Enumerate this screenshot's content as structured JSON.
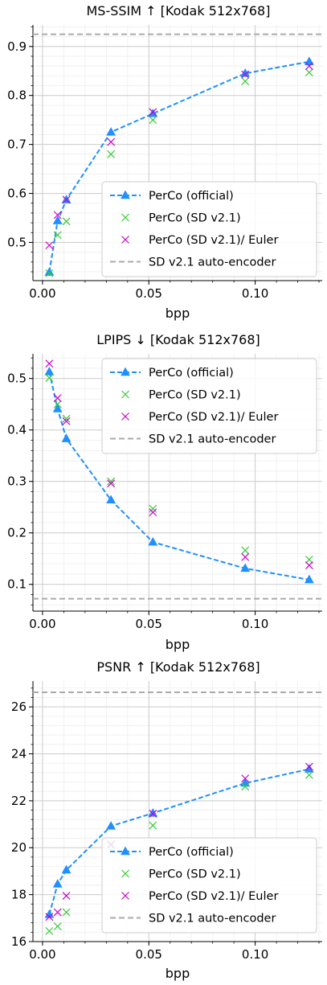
{
  "colors": {
    "official": "#1e90ff",
    "sd21": "#33cc33",
    "euler": "#cc00cc",
    "autoencoder": "#aaaaaa",
    "grid_major": "#cccccc",
    "grid_minor": "#eeeeee"
  },
  "legend_labels": [
    "PerCo (official)",
    "PerCo (SD v2.1)",
    "PerCo (SD v2.1)/ Euler",
    "SD v2.1 auto-encoder"
  ],
  "chart_data": [
    {
      "type": "line",
      "title": "MS-SSIM ↑  [Kodak 512x768]",
      "xlabel": "bpp",
      "ylabel": "",
      "xlim": [
        -0.0045,
        0.1315
      ],
      "ylim": [
        0.422,
        0.944
      ],
      "xticks": [
        0.0,
        0.05,
        0.1
      ],
      "xtick_labels": [
        "0.00",
        "0.05",
        "0.10"
      ],
      "yticks": [
        0.5,
        0.6,
        0.7,
        0.8,
        0.9
      ],
      "ytick_labels": [
        "0.5",
        "0.6",
        "0.7",
        "0.8",
        "0.9"
      ],
      "legend_position": "lower right",
      "grid": true,
      "series": [
        {
          "name": "PerCo (official)",
          "style": "line-triangle",
          "x": [
            0.0032,
            0.0071,
            0.0112,
            0.0322,
            0.0519,
            0.0953,
            0.1254
          ],
          "y": [
            0.439,
            0.544,
            0.587,
            0.725,
            0.763,
            0.845,
            0.869
          ]
        },
        {
          "name": "PerCo (SD v2.1)",
          "style": "x",
          "x": [
            0.0032,
            0.0071,
            0.0112,
            0.0322,
            0.0519,
            0.0953,
            0.1254
          ],
          "y": [
            0.437,
            0.515,
            0.543,
            0.68,
            0.75,
            0.829,
            0.847
          ]
        },
        {
          "name": "PerCo (SD v2.1)/ Euler",
          "style": "x",
          "x": [
            0.0032,
            0.0071,
            0.0112,
            0.0322,
            0.0519,
            0.0953,
            0.1254
          ],
          "y": [
            0.494,
            0.556,
            0.587,
            0.705,
            0.766,
            0.843,
            0.86
          ]
        },
        {
          "name": "SD v2.1 auto-encoder",
          "style": "hline",
          "y": 0.925
        }
      ]
    },
    {
      "type": "line",
      "title": "LPIPS ↓  [Kodak 512x768]",
      "xlabel": "bpp",
      "ylabel": "",
      "xlim": [
        -0.0045,
        0.1315
      ],
      "ylim": [
        0.048,
        0.548
      ],
      "xticks": [
        0.0,
        0.05,
        0.1
      ],
      "xtick_labels": [
        "0.00",
        "0.05",
        "0.10"
      ],
      "yticks": [
        0.1,
        0.2,
        0.3,
        0.4,
        0.5
      ],
      "ytick_labels": [
        "0.1",
        "0.2",
        "0.3",
        "0.4",
        "0.5"
      ],
      "legend_position": "upper right",
      "grid": true,
      "series": [
        {
          "name": "PerCo (official)",
          "style": "line-triangle",
          "x": [
            0.0032,
            0.0071,
            0.0112,
            0.0322,
            0.0519,
            0.0953,
            0.1254
          ],
          "y": [
            0.513,
            0.441,
            0.383,
            0.264,
            0.182,
            0.131,
            0.109
          ]
        },
        {
          "name": "PerCo (SD v2.1)",
          "style": "x",
          "x": [
            0.0032,
            0.0071,
            0.0112,
            0.0322,
            0.0519,
            0.0953,
            0.1254
          ],
          "y": [
            0.501,
            0.45,
            0.422,
            0.3,
            0.247,
            0.166,
            0.148
          ]
        },
        {
          "name": "PerCo (SD v2.1)/ Euler",
          "style": "x",
          "x": [
            0.0032,
            0.0071,
            0.0112,
            0.0322,
            0.0519,
            0.0953,
            0.1254
          ],
          "y": [
            0.529,
            0.462,
            0.417,
            0.296,
            0.24,
            0.153,
            0.137
          ]
        },
        {
          "name": "SD v2.1 auto-encoder",
          "style": "hline",
          "y": 0.072
        }
      ]
    },
    {
      "type": "line",
      "title": "PSNR ↑  [Kodak 512x768]",
      "xlabel": "bpp",
      "ylabel": "",
      "xlim": [
        -0.0045,
        0.1315
      ],
      "ylim": [
        16.0,
        27.1
      ],
      "xticks": [
        0.0,
        0.05,
        0.1
      ],
      "xtick_labels": [
        "0.00",
        "0.05",
        "0.10"
      ],
      "yticks": [
        16,
        18,
        20,
        22,
        24,
        26
      ],
      "ytick_labels": [
        "16",
        "18",
        "20",
        "22",
        "24",
        "26"
      ],
      "legend_position": "lower right",
      "grid": true,
      "series": [
        {
          "name": "PerCo (official)",
          "style": "line-triangle",
          "x": [
            0.0032,
            0.0071,
            0.0112,
            0.0322,
            0.0519,
            0.0953,
            0.1254
          ],
          "y": [
            17.15,
            18.45,
            19.05,
            20.92,
            21.47,
            22.75,
            23.35
          ]
        },
        {
          "name": "PerCo (SD v2.1)",
          "style": "x",
          "x": [
            0.0032,
            0.0071,
            0.0112,
            0.0322,
            0.0519,
            0.0953,
            0.1254
          ],
          "y": [
            16.45,
            16.65,
            17.25,
            20.1,
            20.95,
            22.6,
            23.1
          ]
        },
        {
          "name": "PerCo (SD v2.1)/ Euler",
          "style": "x",
          "x": [
            0.0032,
            0.0071,
            0.0112,
            0.0322,
            0.0519,
            0.0953,
            0.1254
          ],
          "y": [
            17.05,
            17.25,
            17.95,
            20.15,
            21.45,
            22.95,
            23.45
          ]
        },
        {
          "name": "SD v2.1 auto-encoder",
          "style": "hline",
          "y": 26.62
        }
      ]
    }
  ]
}
